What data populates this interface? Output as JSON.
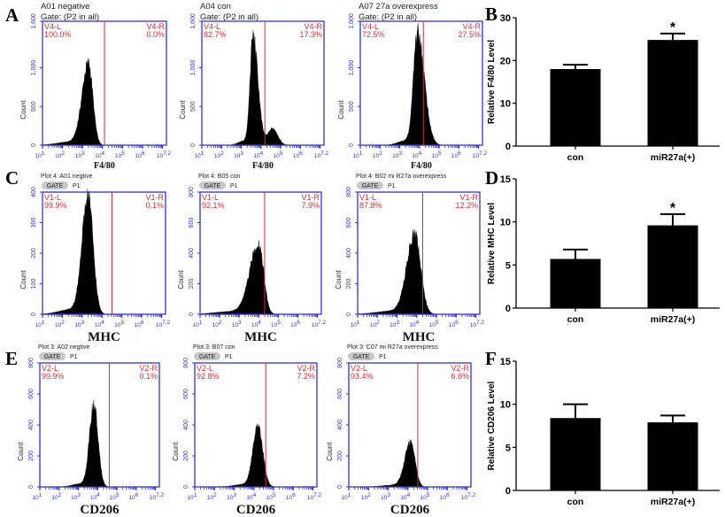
{
  "panel_letters": [
    "A",
    "B",
    "C",
    "D",
    "E",
    "F"
  ],
  "colors": {
    "axis": "#3333cc",
    "gate": "#d0303a",
    "fill": "#000000",
    "bar": "#000000"
  },
  "chart_data": [
    {
      "type": "histogram",
      "panel": "A",
      "title_lines": [
        "A01 negative",
        "Gate: (P2 in all)"
      ],
      "xlabel": "F4/80",
      "ylabel": "Count",
      "xscale": "log",
      "xlim_log10": [
        1,
        7.2
      ],
      "x_ticks": [
        "1",
        "2",
        "3",
        "4",
        "5",
        "6",
        "7.2"
      ],
      "ylim": [
        0,
        1600
      ],
      "y_ticks": [
        "0",
        "500",
        "1,000",
        "1,600"
      ],
      "y_tick_values": [
        0,
        500,
        1000,
        1600
      ],
      "gate_log10": 4.1,
      "gate_left": {
        "label": "V4-L",
        "pct": "100.0%"
      },
      "gate_right": {
        "label": "V4-R",
        "pct": "0.0%"
      },
      "peak": {
        "log10": 3.3,
        "count": 1050,
        "sd_left": 0.32,
        "sd_right": 0.22
      }
    },
    {
      "type": "histogram",
      "panel": "A",
      "title_lines": [
        "A04 con",
        "Gate: (P2 in all)"
      ],
      "xlabel": "F4/80",
      "ylabel": "Count",
      "xscale": "log",
      "xlim_log10": [
        1,
        7.2
      ],
      "x_ticks": [
        "1",
        "2",
        "3",
        "4",
        "5",
        "6",
        "7.2"
      ],
      "ylim": [
        0,
        1600
      ],
      "y_ticks": [
        "0",
        "500",
        "1,000",
        "1,600"
      ],
      "y_tick_values": [
        0,
        500,
        1000,
        1600
      ],
      "gate_log10": 4.2,
      "gate_left": {
        "label": "V4-L",
        "pct": "82.7%"
      },
      "gate_right": {
        "label": "V4-R",
        "pct": "17.3%"
      },
      "peak": {
        "log10": 3.6,
        "count": 1400,
        "sd_left": 0.15,
        "sd_right": 0.25
      },
      "shoulder": {
        "log10": 4.6,
        "count": 220,
        "sd": 0.25
      }
    },
    {
      "type": "histogram",
      "panel": "A",
      "title_lines": [
        "A07 27a overexpress",
        "Gate: (P2 in all)"
      ],
      "xlabel": "F4/80",
      "ylabel": "Count",
      "xscale": "log",
      "xlim_log10": [
        1,
        7.2
      ],
      "x_ticks": [
        "1",
        "2",
        "3",
        "4",
        "5",
        "6",
        "7.2"
      ],
      "ylim": [
        0,
        1600
      ],
      "y_ticks": [
        "0",
        "500",
        "1,000",
        "1,600"
      ],
      "y_tick_values": [
        0,
        500,
        1000,
        1600
      ],
      "gate_log10": 4.2,
      "gate_left": {
        "label": "V4-L",
        "pct": "72.5%"
      },
      "gate_right": {
        "label": "V4-R",
        "pct": "27.5%"
      },
      "peak": {
        "log10": 3.9,
        "count": 1450,
        "sd_left": 0.2,
        "sd_right": 0.35
      }
    },
    {
      "type": "bar",
      "panel": "B",
      "categories": [
        "con",
        "miR27a(+)"
      ],
      "values": [
        18.0,
        24.8
      ],
      "errors": [
        1.0,
        1.5
      ],
      "significance": [
        "",
        "*"
      ],
      "ylabel": "Relative F4/80 Level",
      "ylim": [
        0,
        30
      ],
      "y_ticks": [
        0,
        10,
        20,
        30
      ]
    },
    {
      "type": "histogram",
      "panel": "C",
      "title_lines": [
        "Plot 4: A01 negtive"
      ],
      "gate_tag": "GATE",
      "gate_name": "P1",
      "xlabel": "MHC",
      "ylabel": "Count",
      "xscale": "log",
      "xlim_log10": [
        1,
        7.2
      ],
      "x_ticks": [
        "1",
        "2",
        "3",
        "4",
        "5",
        "6",
        "7.2"
      ],
      "ylim": [
        0,
        400
      ],
      "y_ticks": [
        "0",
        "100",
        "200",
        "300",
        "400"
      ],
      "y_tick_values": [
        0,
        100,
        200,
        300,
        400
      ],
      "gate_log10": 4.5,
      "gate_left": {
        "label": "V1-L",
        "pct": "99.9%"
      },
      "gate_right": {
        "label": "V1-R",
        "pct": "0.1%"
      },
      "peak": {
        "log10": 3.3,
        "count": 390,
        "sd_left": 0.3,
        "sd_right": 0.25
      }
    },
    {
      "type": "histogram",
      "panel": "C",
      "title_lines": [
        "Plot 4: B05 con"
      ],
      "gate_tag": "GATE",
      "gate_name": "P1",
      "xlabel": "MHC",
      "ylabel": "Count",
      "xscale": "log",
      "xlim_log10": [
        1,
        7.2
      ],
      "x_ticks": [
        "1",
        "2",
        "3",
        "4",
        "5",
        "6",
        "7.2"
      ],
      "ylim": [
        0,
        800
      ],
      "y_ticks": [
        "0",
        "200",
        "400",
        "600",
        "800"
      ],
      "y_tick_values": [
        0,
        200,
        400,
        600,
        800
      ],
      "gate_log10": 4.3,
      "gate_left": {
        "label": "V1-L",
        "pct": "92.1%"
      },
      "gate_right": {
        "label": "V1-R",
        "pct": "7.9%"
      },
      "peak": {
        "log10": 4.0,
        "count": 460,
        "sd_left": 0.45,
        "sd_right": 0.25
      }
    },
    {
      "type": "histogram",
      "panel": "C",
      "title_lines": [
        "Plot 4: B02 mi R27a overexpress"
      ],
      "gate_tag": "GATE",
      "gate_name": "P1",
      "xlabel": "MHC",
      "ylabel": "Count",
      "xscale": "log",
      "xlim_log10": [
        1,
        7.2
      ],
      "x_ticks": [
        "1",
        "2",
        "3",
        "4",
        "5",
        "6",
        "7.2"
      ],
      "ylim": [
        0,
        800
      ],
      "y_ticks": [
        "0",
        "200",
        "400",
        "600",
        "800"
      ],
      "y_tick_values": [
        0,
        200,
        400,
        600,
        800
      ],
      "gate_log10": 4.3,
      "gate_left": {
        "label": "V1-L",
        "pct": "87.8%"
      },
      "gate_right": {
        "label": "V1-R",
        "pct": "12.2%"
      },
      "peak": {
        "log10": 3.9,
        "count": 520,
        "sd_left": 0.4,
        "sd_right": 0.3
      }
    },
    {
      "type": "bar",
      "panel": "D",
      "categories": [
        "con",
        "miR27a(+)"
      ],
      "values": [
        5.7,
        9.6
      ],
      "errors": [
        1.1,
        1.3
      ],
      "significance": [
        "",
        "*"
      ],
      "ylabel": "Relative MHC Level",
      "ylim": [
        0,
        15
      ],
      "y_ticks": [
        0,
        5,
        10,
        15
      ]
    },
    {
      "type": "histogram",
      "panel": "E",
      "title_lines": [
        "Plot 3: A02 negtive"
      ],
      "gate_tag": "GATE",
      "gate_name": "P1",
      "xlabel": "CD206",
      "ylabel": "Count",
      "xscale": "log",
      "xlim_log10": [
        1,
        7.2
      ],
      "x_ticks": [
        "1",
        "2",
        "3",
        "4",
        "5",
        "6",
        "7.2"
      ],
      "ylim": [
        0,
        800
      ],
      "y_ticks": [
        "0",
        "200",
        "400",
        "600",
        "800"
      ],
      "y_tick_values": [
        0,
        200,
        400,
        600,
        800
      ],
      "gate_log10": 4.6,
      "gate_left": {
        "label": "V2-L",
        "pct": "99.9%"
      },
      "gate_right": {
        "label": "V2-R",
        "pct": "0.1%"
      },
      "peak": {
        "log10": 3.8,
        "count": 530,
        "sd_left": 0.22,
        "sd_right": 0.22
      }
    },
    {
      "type": "histogram",
      "panel": "E",
      "title_lines": [
        "Plot 3: B07 con"
      ],
      "gate_tag": "GATE",
      "gate_name": "P1",
      "xlabel": "CD206",
      "ylabel": "Count",
      "xscale": "log",
      "xlim_log10": [
        1,
        7.2
      ],
      "x_ticks": [
        "1",
        "2",
        "3",
        "4",
        "5",
        "6",
        "7.2"
      ],
      "ylim": [
        0,
        800
      ],
      "y_ticks": [
        "0",
        "200",
        "400",
        "600",
        "800"
      ],
      "y_tick_values": [
        0,
        200,
        400,
        600,
        800
      ],
      "gate_log10": 4.6,
      "gate_left": {
        "label": "V2-L",
        "pct": "92.8%"
      },
      "gate_right": {
        "label": "V2-R",
        "pct": "7.2%"
      },
      "peak": {
        "log10": 4.2,
        "count": 390,
        "sd_left": 0.25,
        "sd_right": 0.25
      }
    },
    {
      "type": "histogram",
      "panel": "E",
      "title_lines": [
        "Plot 3: C07 mi R27a overexpress"
      ],
      "gate_tag": "GATE",
      "gate_name": "P1",
      "xlabel": "CD206",
      "ylabel": "Count",
      "xscale": "log",
      "xlim_log10": [
        1,
        7.2
      ],
      "x_ticks": [
        "1",
        "2",
        "3",
        "4",
        "5",
        "6",
        "7.2"
      ],
      "ylim": [
        0,
        800
      ],
      "y_ticks": [
        "0",
        "200",
        "400",
        "600",
        "800"
      ],
      "y_tick_values": [
        0,
        200,
        400,
        600,
        800
      ],
      "gate_log10": 4.5,
      "gate_left": {
        "label": "V2-L",
        "pct": "93.4%"
      },
      "gate_right": {
        "label": "V2-R",
        "pct": "6.6%"
      },
      "peak": {
        "log10": 4.15,
        "count": 290,
        "sd_left": 0.3,
        "sd_right": 0.22
      }
    },
    {
      "type": "bar",
      "panel": "F",
      "categories": [
        "con",
        "miR27a(+)"
      ],
      "values": [
        8.4,
        7.9
      ],
      "errors": [
        1.6,
        0.8
      ],
      "significance": [
        "",
        ""
      ],
      "ylabel": "Relative CD206 Level",
      "ylim": [
        0,
        15
      ],
      "y_ticks": [
        0,
        5,
        10,
        15
      ]
    }
  ]
}
